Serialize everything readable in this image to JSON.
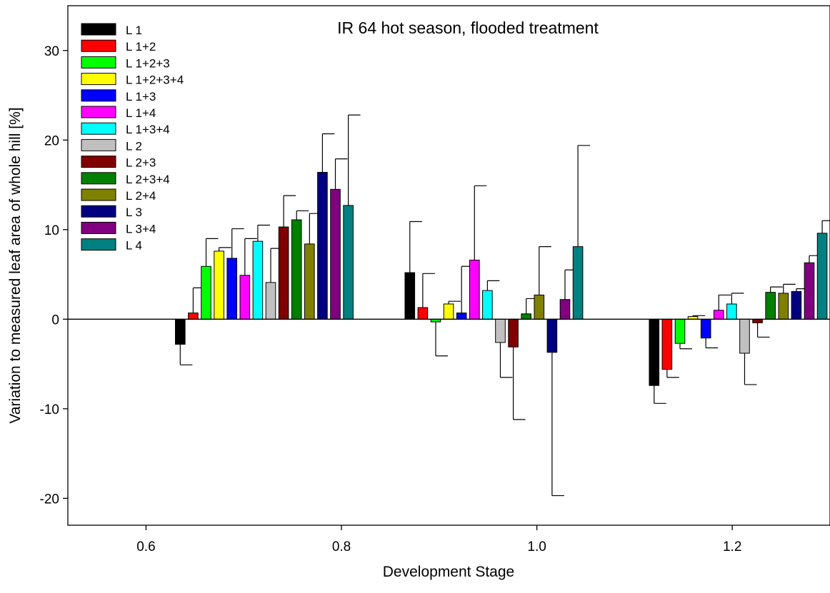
{
  "chart_data": {
    "type": "bar",
    "title": "IR 64 hot season, flooded treatment",
    "xlabel": "Development Stage",
    "ylabel": "Variation to measured leaf area of whole hill [%]",
    "xlim": [
      0.52,
      1.3
    ],
    "ylim": [
      -23,
      35
    ],
    "xticks": [
      "0.6",
      "0.8",
      "1.0",
      "1.2"
    ],
    "yticks": [
      "-20",
      "-10",
      "0",
      "10",
      "20",
      "30"
    ],
    "x": [
      0.635,
      0.87,
      1.12
    ],
    "legend_position": "top-left",
    "series": [
      {
        "name": "L 1",
        "color": "#000000",
        "values": [
          -2.8,
          5.2,
          -7.4
        ],
        "errors": [
          2.3,
          5.7,
          2.0
        ]
      },
      {
        "name": "L 1+2",
        "color": "#ff0000",
        "values": [
          0.7,
          1.3,
          -5.6
        ],
        "errors": [
          2.8,
          3.8,
          0.9
        ]
      },
      {
        "name": "L 1+2+3",
        "color": "#00ff00",
        "values": [
          5.9,
          -0.3,
          -2.7
        ],
        "errors": [
          3.1,
          3.8,
          0.6
        ]
      },
      {
        "name": "L 1+2+3+4",
        "color": "#ffff00",
        "values": [
          7.6,
          1.7,
          0.3
        ],
        "errors": [
          0.4,
          0.3,
          0.1
        ]
      },
      {
        "name": "L 1+3",
        "color": "#0000ff",
        "values": [
          6.8,
          0.7,
          -2.1
        ],
        "errors": [
          3.3,
          5.2,
          1.1
        ]
      },
      {
        "name": "L 1+4",
        "color": "#ff00ff",
        "values": [
          4.9,
          6.6,
          1.0
        ],
        "errors": [
          4.1,
          8.3,
          1.7
        ]
      },
      {
        "name": "L 1+3+4",
        "color": "#00ffff",
        "values": [
          8.7,
          3.2,
          1.7
        ],
        "errors": [
          1.8,
          1.1,
          1.2
        ]
      },
      {
        "name": "L 2",
        "color": "#c0c0c0",
        "values": [
          4.1,
          -2.6,
          -3.8
        ],
        "errors": [
          3.8,
          3.9,
          3.5
        ]
      },
      {
        "name": "L 2+3",
        "color": "#800000",
        "values": [
          10.3,
          -3.1,
          -0.4
        ],
        "errors": [
          3.5,
          8.1,
          1.6
        ]
      },
      {
        "name": "L 2+3+4",
        "color": "#008000",
        "values": [
          11.1,
          0.6,
          3.0
        ],
        "errors": [
          1.0,
          1.7,
          0.6
        ]
      },
      {
        "name": "L 2+4",
        "color": "#808000",
        "values": [
          8.4,
          2.7,
          2.9
        ],
        "errors": [
          3.4,
          5.4,
          1.0
        ]
      },
      {
        "name": "L 3",
        "color": "#000080",
        "values": [
          16.4,
          -3.7,
          3.1
        ],
        "errors": [
          4.3,
          16.0,
          0.3
        ]
      },
      {
        "name": "L 3+4",
        "color": "#800080",
        "values": [
          14.5,
          2.2,
          6.3
        ],
        "errors": [
          3.4,
          3.3,
          0.8
        ]
      },
      {
        "name": "L 4",
        "color": "#008080",
        "values": [
          12.7,
          8.1,
          9.6
        ],
        "errors": [
          10.1,
          11.3,
          1.4
        ]
      }
    ]
  }
}
